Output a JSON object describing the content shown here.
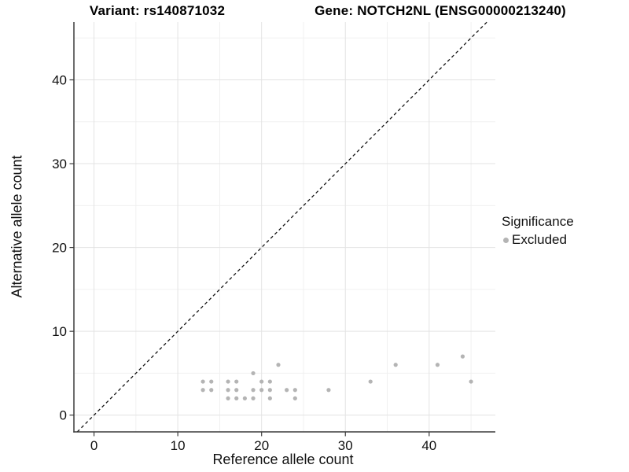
{
  "titles": {
    "left": "Variant: rs140871032",
    "right": "Gene: NOTCH2NL (ENSG00000213240)"
  },
  "chart_data": {
    "type": "scatter",
    "title": "Variant: rs140871032 — Gene: NOTCH2NL (ENSG00000213240)",
    "xlabel": "Reference allele count",
    "ylabel": "Alternative allele count",
    "xlim": [
      -2.4,
      47.9
    ],
    "ylim": [
      -2.0,
      46.9
    ],
    "x_ticks": [
      0,
      10,
      20,
      30,
      40
    ],
    "y_ticks": [
      0,
      10,
      20,
      30,
      40
    ],
    "x_minor_ticks": [
      5,
      15,
      25,
      35,
      45
    ],
    "y_minor_ticks": [
      5,
      15,
      25,
      35,
      45
    ],
    "grid": true,
    "reference_line": {
      "equation": "y = x",
      "style": "dashed",
      "color": "#141414"
    },
    "series": [
      {
        "name": "Excluded",
        "color": "#b4b4b4",
        "points": [
          [
            16,
            2
          ],
          [
            17,
            2
          ],
          [
            18,
            2
          ],
          [
            19,
            2
          ],
          [
            21,
            2
          ],
          [
            24,
            2
          ],
          [
            13,
            3
          ],
          [
            14,
            3
          ],
          [
            16,
            3
          ],
          [
            17,
            3
          ],
          [
            19,
            3
          ],
          [
            20,
            3
          ],
          [
            21,
            3
          ],
          [
            23,
            3
          ],
          [
            24,
            3
          ],
          [
            28,
            3
          ],
          [
            13,
            4
          ],
          [
            14,
            4
          ],
          [
            16,
            4
          ],
          [
            17,
            4
          ],
          [
            20,
            4
          ],
          [
            21,
            4
          ],
          [
            33,
            4
          ],
          [
            45,
            4
          ],
          [
            19,
            5
          ],
          [
            22,
            6
          ],
          [
            36,
            6
          ],
          [
            41,
            6
          ],
          [
            44,
            7
          ]
        ]
      }
    ],
    "legend": {
      "title": "Significance",
      "position": "right",
      "items": [
        {
          "label": "Excluded",
          "color": "#b4b4b4"
        }
      ]
    },
    "colors": {
      "background": "#ffffff",
      "major_grid": "#e3e3e3",
      "minor_grid": "#f0f0f0",
      "axis_line": "#3c3c3c",
      "tick_text": "#111111",
      "point": "#b4b4b4"
    }
  }
}
